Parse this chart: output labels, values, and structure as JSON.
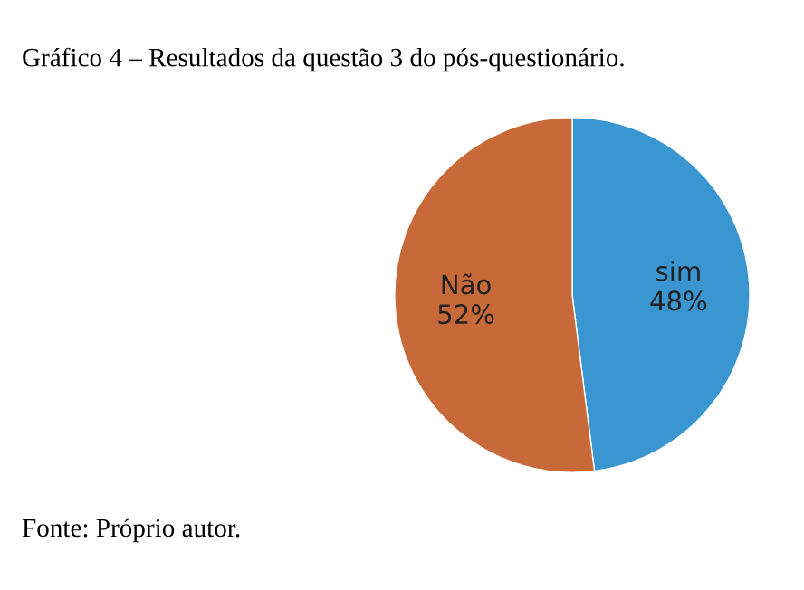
{
  "chart_data": {
    "type": "pie",
    "title": "Gráfico 4 – Resultados da questão 3 do pós-questionário.",
    "categories": [
      "sim",
      "Não"
    ],
    "values": [
      48,
      52
    ],
    "colors": [
      "#3a96d0",
      "#c8693a"
    ],
    "value_labels": [
      "48%",
      "52%"
    ],
    "legend": false,
    "annotations": [
      "Fonte: Próprio autor."
    ]
  }
}
